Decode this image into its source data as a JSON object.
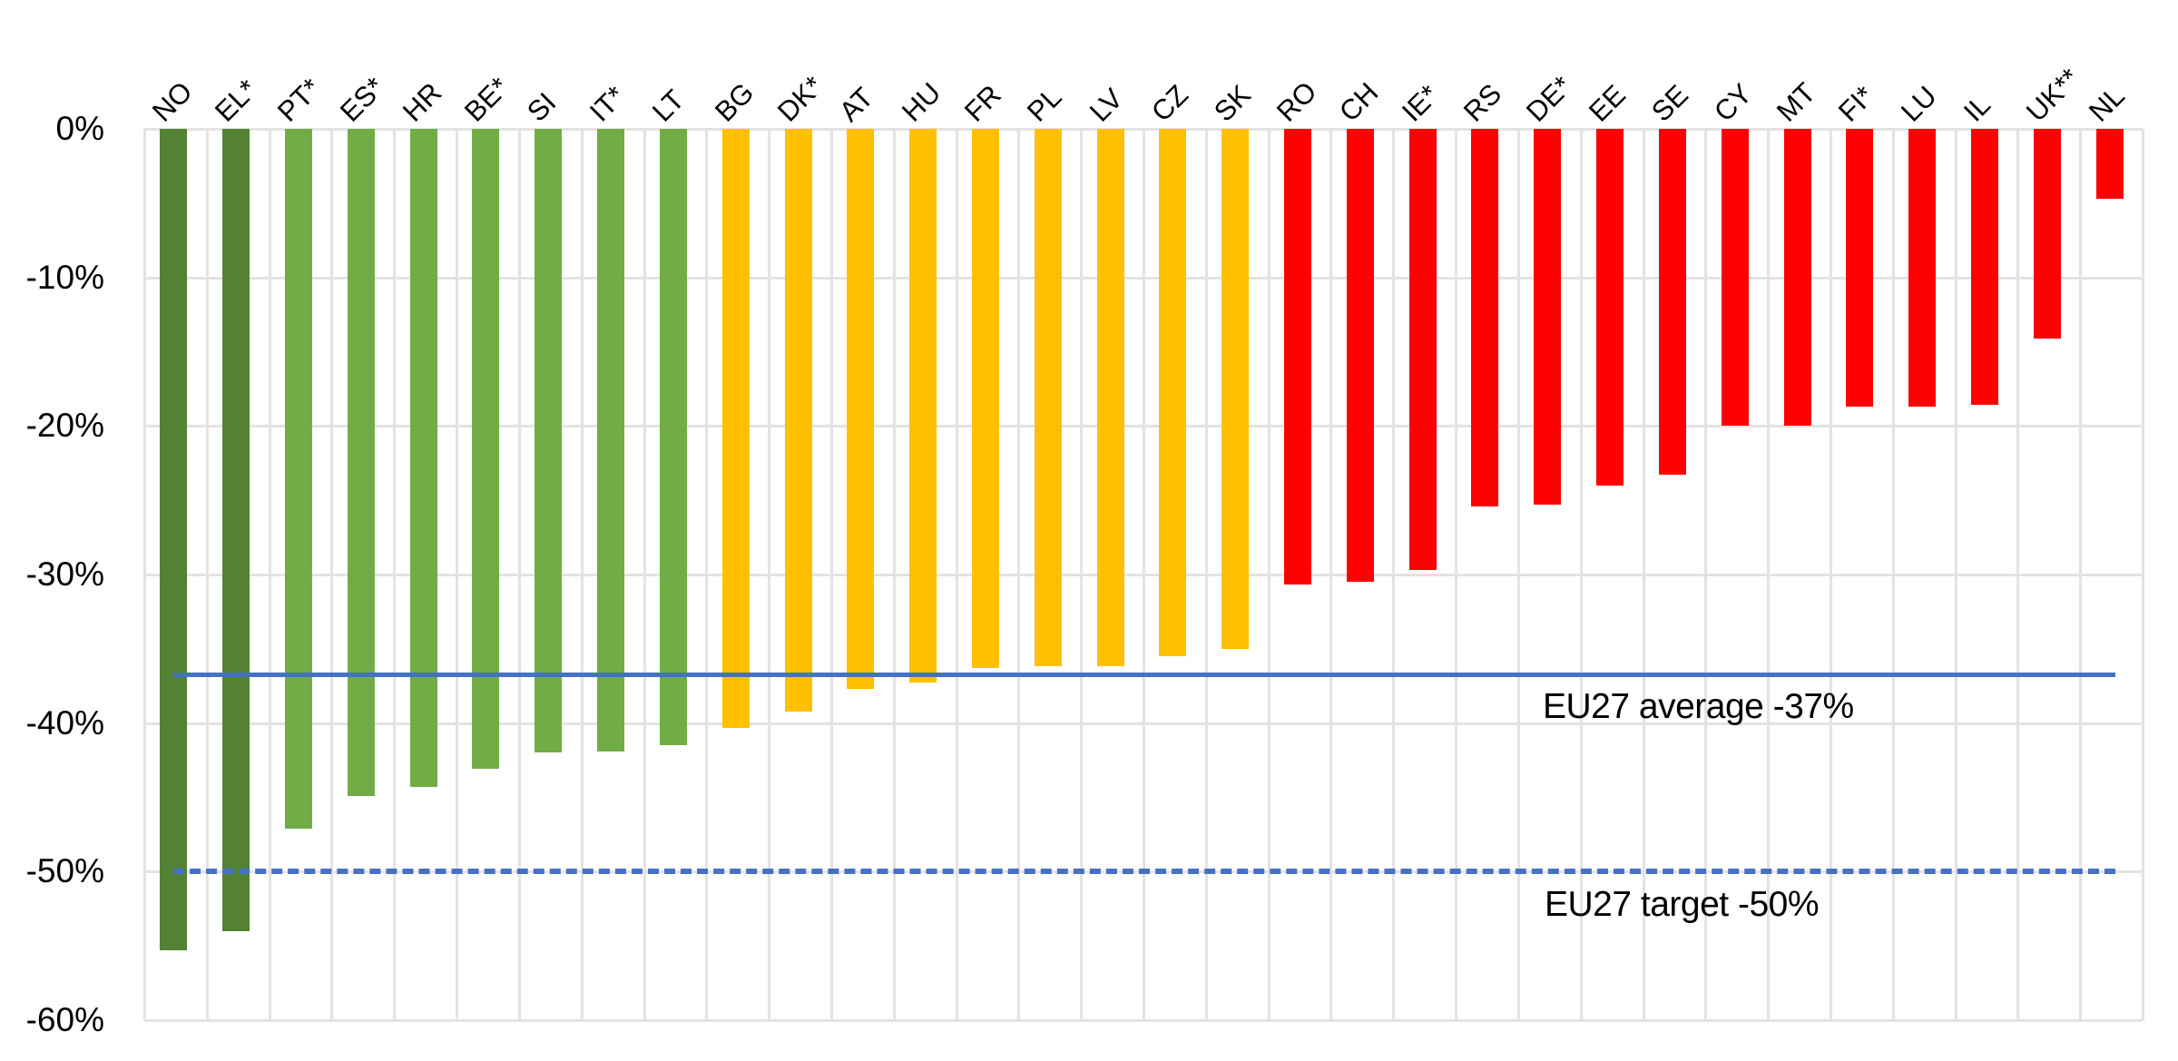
{
  "chart_data": {
    "type": "bar",
    "title": "",
    "xlabel": "",
    "ylabel": "",
    "ylim": [
      -60,
      0
    ],
    "yticks": [
      "0%",
      "-10%",
      "-20%",
      "-30%",
      "-40%",
      "-50%",
      "-60%"
    ],
    "ytick_values": [
      0,
      -10,
      -20,
      -30,
      -40,
      -50,
      -60
    ],
    "grid": true,
    "legend": null,
    "x_label_rotation": -45,
    "x_label_position": "top",
    "categories": [
      "NO",
      "EL*",
      "PT*",
      "ES*",
      "HR",
      "BE*",
      "SI",
      "IT*",
      "LT",
      "BG",
      "DK*",
      "AT",
      "HU",
      "FR",
      "PL",
      "LV",
      "CZ",
      "SK",
      "RO",
      "CH",
      "IE*",
      "RS",
      "DE*",
      "EE",
      "SE",
      "CY",
      "MT",
      "FI*",
      "LU",
      "IL",
      "UK**",
      "NL"
    ],
    "values": [
      -55.3,
      -54.0,
      -47.1,
      -44.9,
      -44.3,
      -43.1,
      -42.0,
      -41.9,
      -41.5,
      -40.3,
      -39.2,
      -37.7,
      -37.3,
      -36.3,
      -36.2,
      -36.2,
      -35.5,
      -35.0,
      -30.7,
      -30.5,
      -29.7,
      -25.4,
      -25.3,
      -24.0,
      -23.3,
      -20.0,
      -20.0,
      -18.7,
      -18.7,
      -18.6,
      -14.1,
      -4.7
    ],
    "value_unit": "%",
    "bar_groups": [
      "dark-green",
      "dark-green",
      "green",
      "green",
      "green",
      "green",
      "green",
      "green",
      "green",
      "yellow",
      "yellow",
      "yellow",
      "yellow",
      "yellow",
      "yellow",
      "yellow",
      "yellow",
      "yellow",
      "red",
      "red",
      "red",
      "red",
      "red",
      "red",
      "red",
      "red",
      "red",
      "red",
      "red",
      "red",
      "red",
      "red"
    ],
    "colors": {
      "dark-green": "#548235",
      "green": "#70AD47",
      "yellow": "#FFC000",
      "red": "#FF0000",
      "reference_line": "#4472C4",
      "grid": "#E3E3E3"
    },
    "reference_lines": [
      {
        "name": "EU27 average",
        "value": -36.7,
        "style": "solid",
        "label": "EU27 average -37%"
      },
      {
        "name": "EU27 target",
        "value": -50,
        "style": "dashed",
        "label": "EU27 target -50%"
      }
    ]
  }
}
